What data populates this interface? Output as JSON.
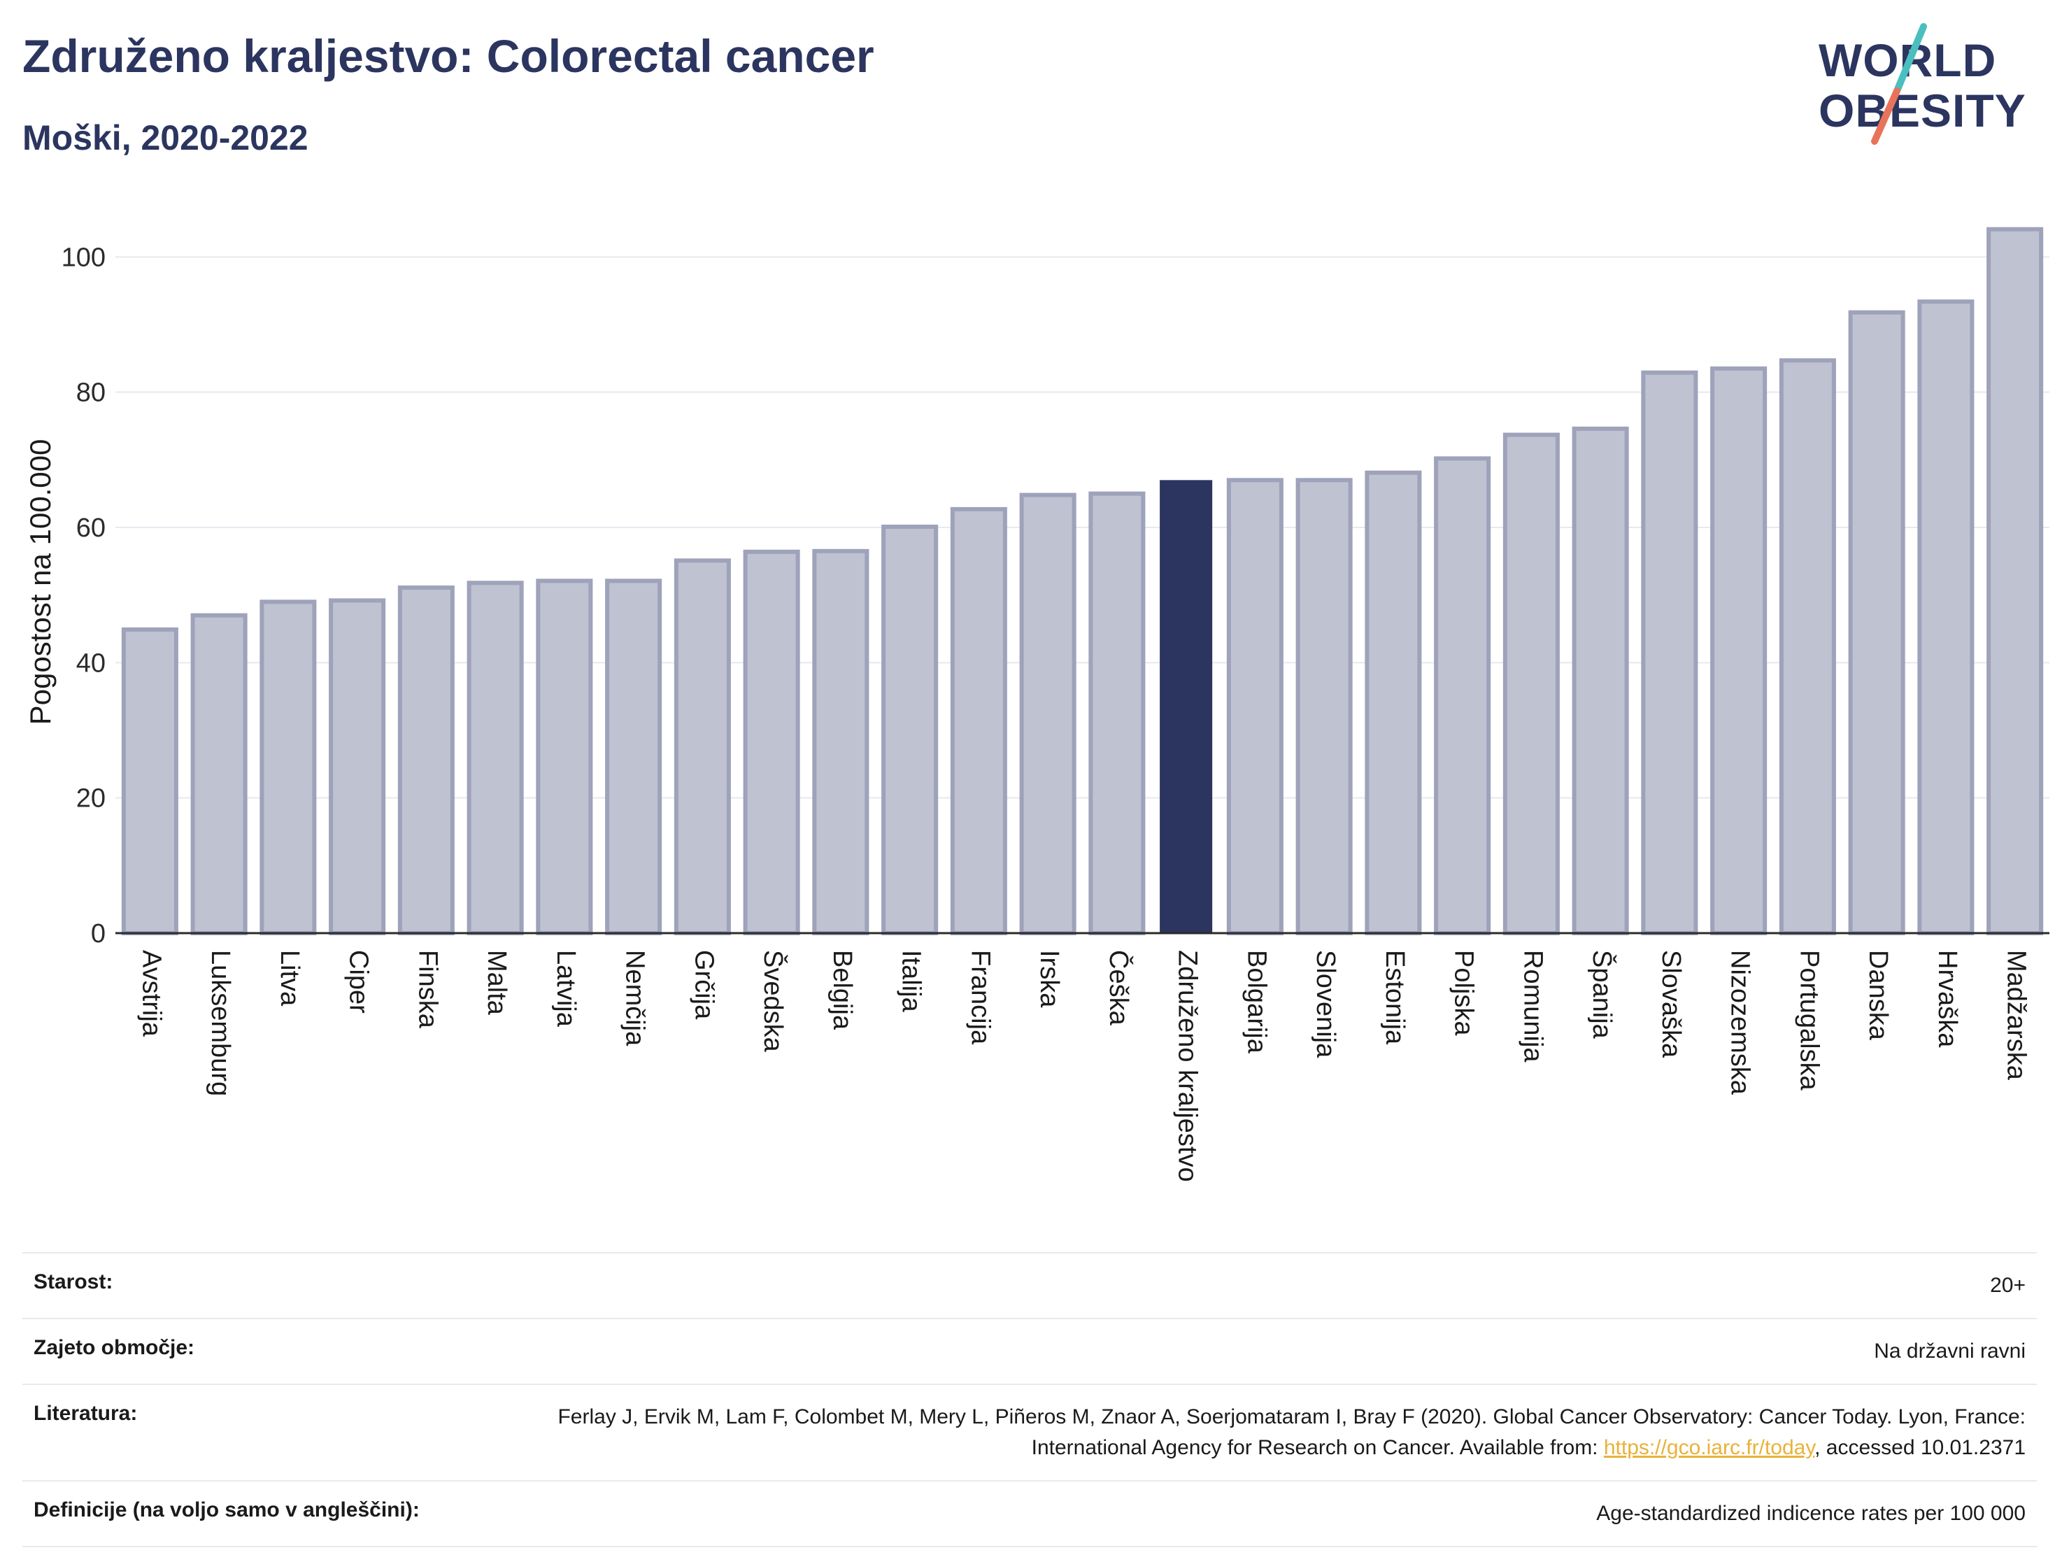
{
  "header": {
    "title": "Združeno kraljestvo: Colorectal cancer",
    "subtitle": "Moški, 2020-2022"
  },
  "logo": {
    "line1": "WORLD",
    "line2": "OBESITY",
    "colors": {
      "text": "#2b355f",
      "slash_top": "#4bbfbf",
      "slash_bottom": "#e8735a"
    }
  },
  "colors": {
    "bar_fill": "#bfc2d1",
    "bar_stroke": "#9ea2ba",
    "highlight": "#2b355f",
    "grid": "#e6e9ef",
    "axis": "#2b2b2b"
  },
  "chart_data": {
    "type": "bar",
    "ylabel": "Pogostost na 100.000",
    "ylim": [
      0,
      108
    ],
    "yticks": [
      0,
      20,
      40,
      60,
      80,
      100
    ],
    "grid": true,
    "highlight": "Združeno kraljestvo",
    "categories": [
      "Avstrija",
      "Luksemburg",
      "Litva",
      "Ciper",
      "Finska",
      "Malta",
      "Latvija",
      "Nemčija",
      "Grčija",
      "Švedska",
      "Belgija",
      "Italija",
      "Francija",
      "Irska",
      "Češka",
      "Združeno kraljestvo",
      "Bolgarija",
      "Slovenija",
      "Estonija",
      "Poljska",
      "Romunija",
      "Španija",
      "Slovaška",
      "Nizozemska",
      "Portugalska",
      "Danska",
      "Hrvaška",
      "Madžarska"
    ],
    "values": [
      44.9,
      47.0,
      49.0,
      49.2,
      51.1,
      51.8,
      52.1,
      52.1,
      55.1,
      56.4,
      56.5,
      60.1,
      62.7,
      64.8,
      65.0,
      67.0,
      67.0,
      67.0,
      68.1,
      70.2,
      73.7,
      74.6,
      82.9,
      83.5,
      84.7,
      91.8,
      93.4,
      104.1
    ]
  },
  "info": {
    "rows": [
      {
        "key": "Starost:",
        "value": "20+"
      },
      {
        "key": "Zajeto območje:",
        "value": "Na državni ravni"
      },
      {
        "key": "Literatura:",
        "value_pre": "Ferlay J, Ervik M, Lam F, Colombet M, Mery L, Piñeros M, Znaor A, Soerjomataram I, Bray F (2020). Global Cancer Observatory: Cancer Today. Lyon, France: International Agency for Research on Cancer. Available from: ",
        "link": "https://gco.iarc.fr/today",
        "value_post": ", accessed 10.01.2371"
      },
      {
        "key": "Definicije (na voljo samo v angleščini):",
        "value": "Age-standardized indicence rates per 100 000"
      }
    ]
  }
}
